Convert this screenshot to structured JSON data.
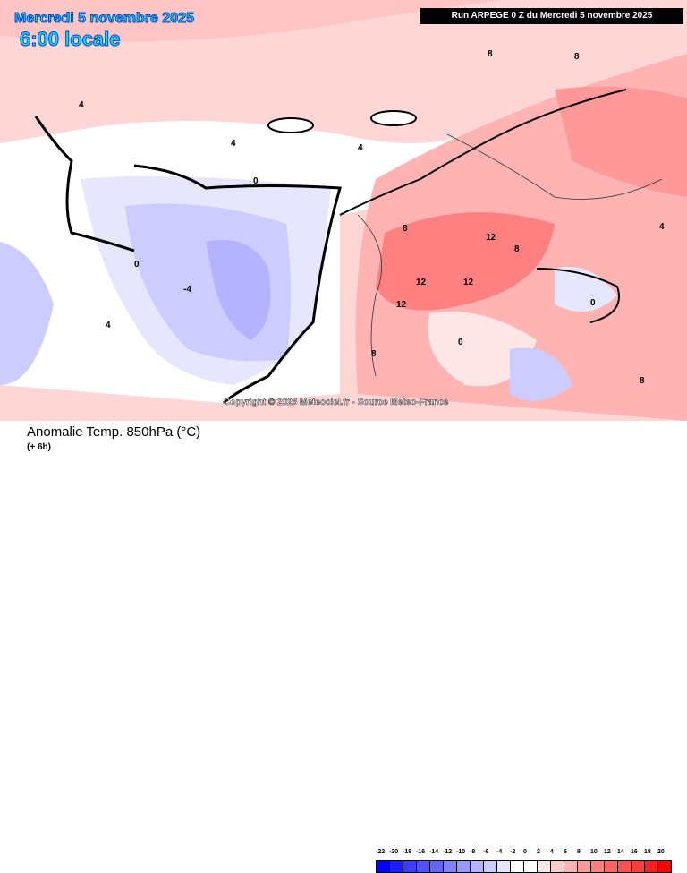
{
  "header": {
    "date": "Mercredi 5 novembre 2025",
    "time": "6:00 locale",
    "run": "Run ARPEGE 0 Z du Mercredi 5 novembre 2025"
  },
  "copyright": "Copyright © 2025 Meteociel.fr - Source Meteo-France",
  "footer": {
    "title": "Anomalie Temp. 850hPa (°C)",
    "subtitle": "(+ 6h)"
  },
  "legend": {
    "labels": [
      "-22",
      "-20",
      "-18",
      "-16",
      "-14",
      "-12",
      "-10",
      "-8",
      "-6",
      "-4",
      "-2",
      "0",
      "2",
      "4",
      "6",
      "8",
      "10",
      "12",
      "14",
      "16",
      "18",
      "20"
    ],
    "colors": [
      "#0000ff",
      "#1e1eff",
      "#3c3cff",
      "#5050ff",
      "#6464ff",
      "#8080ff",
      "#9999ff",
      "#b3b3ff",
      "#ccccff",
      "#e6e6ff",
      "#ffffff",
      "#ffffff",
      "#ffe6e6",
      "#ffcccc",
      "#ffb3b3",
      "#ff9999",
      "#ff8080",
      "#ff6464",
      "#ff5050",
      "#ff3c3c",
      "#ff1e1e",
      "#ff0000"
    ]
  },
  "contour_labels": [
    "12",
    "12",
    "12",
    "12",
    "8",
    "8",
    "8",
    "8",
    "4",
    "4",
    "4",
    "0",
    "0",
    "0",
    "-4",
    "4",
    "8",
    "8",
    "0",
    "4"
  ]
}
